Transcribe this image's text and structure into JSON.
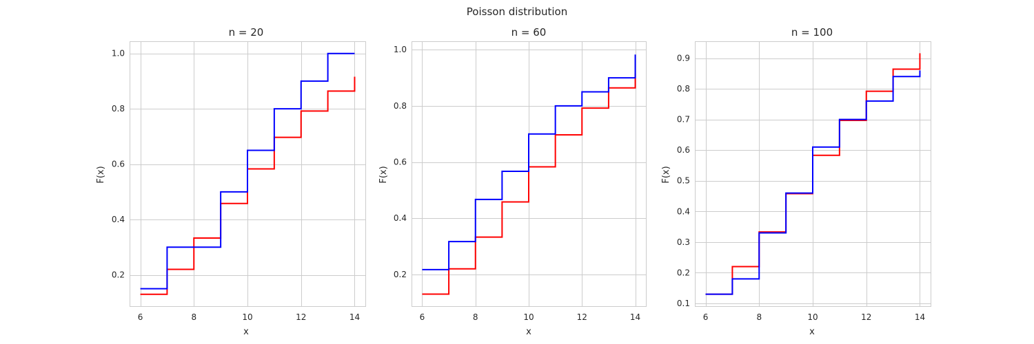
{
  "figure": {
    "suptitle": "Poisson distribution"
  },
  "chart_data": [
    {
      "type": "line",
      "title": "n = 20",
      "xlabel": "x",
      "ylabel": "F(x)",
      "xlim": [
        5.6,
        14.4
      ],
      "ylim": [
        0.087,
        1.044
      ],
      "xticks": [
        6,
        8,
        10,
        12,
        14
      ],
      "xtick_labels": [
        "6",
        "8",
        "10",
        "12",
        "14"
      ],
      "yticks": [
        0.2,
        0.4,
        0.6,
        0.8,
        1.0
      ],
      "ytick_labels": [
        "0.2",
        "0.4",
        "0.6",
        "0.8",
        "1.0"
      ],
      "grid": true,
      "series": [
        {
          "color": "#ff0000",
          "step": "post",
          "x": [
            6,
            7,
            8,
            9,
            10,
            11,
            12,
            13,
            14
          ],
          "y": [
            0.13,
            0.22,
            0.333,
            0.458,
            0.583,
            0.697,
            0.792,
            0.864,
            0.916
          ]
        },
        {
          "color": "#0000ff",
          "step": "post",
          "x": [
            6,
            7,
            8,
            9,
            10,
            11,
            12,
            13,
            14
          ],
          "y": [
            0.15,
            0.3,
            0.3,
            0.5,
            0.65,
            0.8,
            0.9,
            1.0,
            1.0
          ]
        }
      ]
    },
    {
      "type": "line",
      "title": "n = 60",
      "xlabel": "x",
      "ylabel": "F(x)",
      "xlim": [
        5.6,
        14.4
      ],
      "ylim": [
        0.087,
        1.03
      ],
      "xticks": [
        6,
        8,
        10,
        12,
        14
      ],
      "xtick_labels": [
        "6",
        "8",
        "10",
        "12",
        "14"
      ],
      "yticks": [
        0.2,
        0.4,
        0.6,
        0.8,
        1.0
      ],
      "ytick_labels": [
        "0.2",
        "0.4",
        "0.6",
        "0.8",
        "1.0"
      ],
      "grid": true,
      "series": [
        {
          "color": "#ff0000",
          "step": "post",
          "x": [
            6,
            7,
            8,
            9,
            10,
            11,
            12,
            13,
            14
          ],
          "y": [
            0.13,
            0.22,
            0.333,
            0.458,
            0.583,
            0.697,
            0.792,
            0.864,
            0.916
          ]
        },
        {
          "color": "#0000ff",
          "step": "post",
          "x": [
            6,
            7,
            8,
            9,
            10,
            11,
            12,
            13,
            14
          ],
          "y": [
            0.217,
            0.317,
            0.467,
            0.567,
            0.7,
            0.8,
            0.85,
            0.9,
            0.983
          ]
        }
      ]
    },
    {
      "type": "line",
      "title": "n = 100",
      "xlabel": "x",
      "ylabel": "F(x)",
      "xlim": [
        5.6,
        14.4
      ],
      "ylim": [
        0.091,
        0.955
      ],
      "xticks": [
        6,
        8,
        10,
        12,
        14
      ],
      "xtick_labels": [
        "6",
        "8",
        "10",
        "12",
        "14"
      ],
      "yticks": [
        0.1,
        0.2,
        0.3,
        0.4,
        0.5,
        0.6,
        0.7,
        0.8,
        0.9
      ],
      "ytick_labels": [
        "0.1",
        "0.2",
        "0.3",
        "0.4",
        "0.5",
        "0.6",
        "0.7",
        "0.8",
        "0.9"
      ],
      "grid": true,
      "series": [
        {
          "color": "#ff0000",
          "step": "post",
          "x": [
            6,
            7,
            8,
            9,
            10,
            11,
            12,
            13,
            14
          ],
          "y": [
            0.13,
            0.22,
            0.333,
            0.458,
            0.583,
            0.697,
            0.792,
            0.864,
            0.916
          ]
        },
        {
          "color": "#0000ff",
          "step": "post",
          "x": [
            6,
            7,
            8,
            9,
            10,
            11,
            12,
            13,
            14
          ],
          "y": [
            0.13,
            0.18,
            0.33,
            0.46,
            0.61,
            0.7,
            0.76,
            0.84,
            0.86
          ]
        }
      ]
    }
  ]
}
